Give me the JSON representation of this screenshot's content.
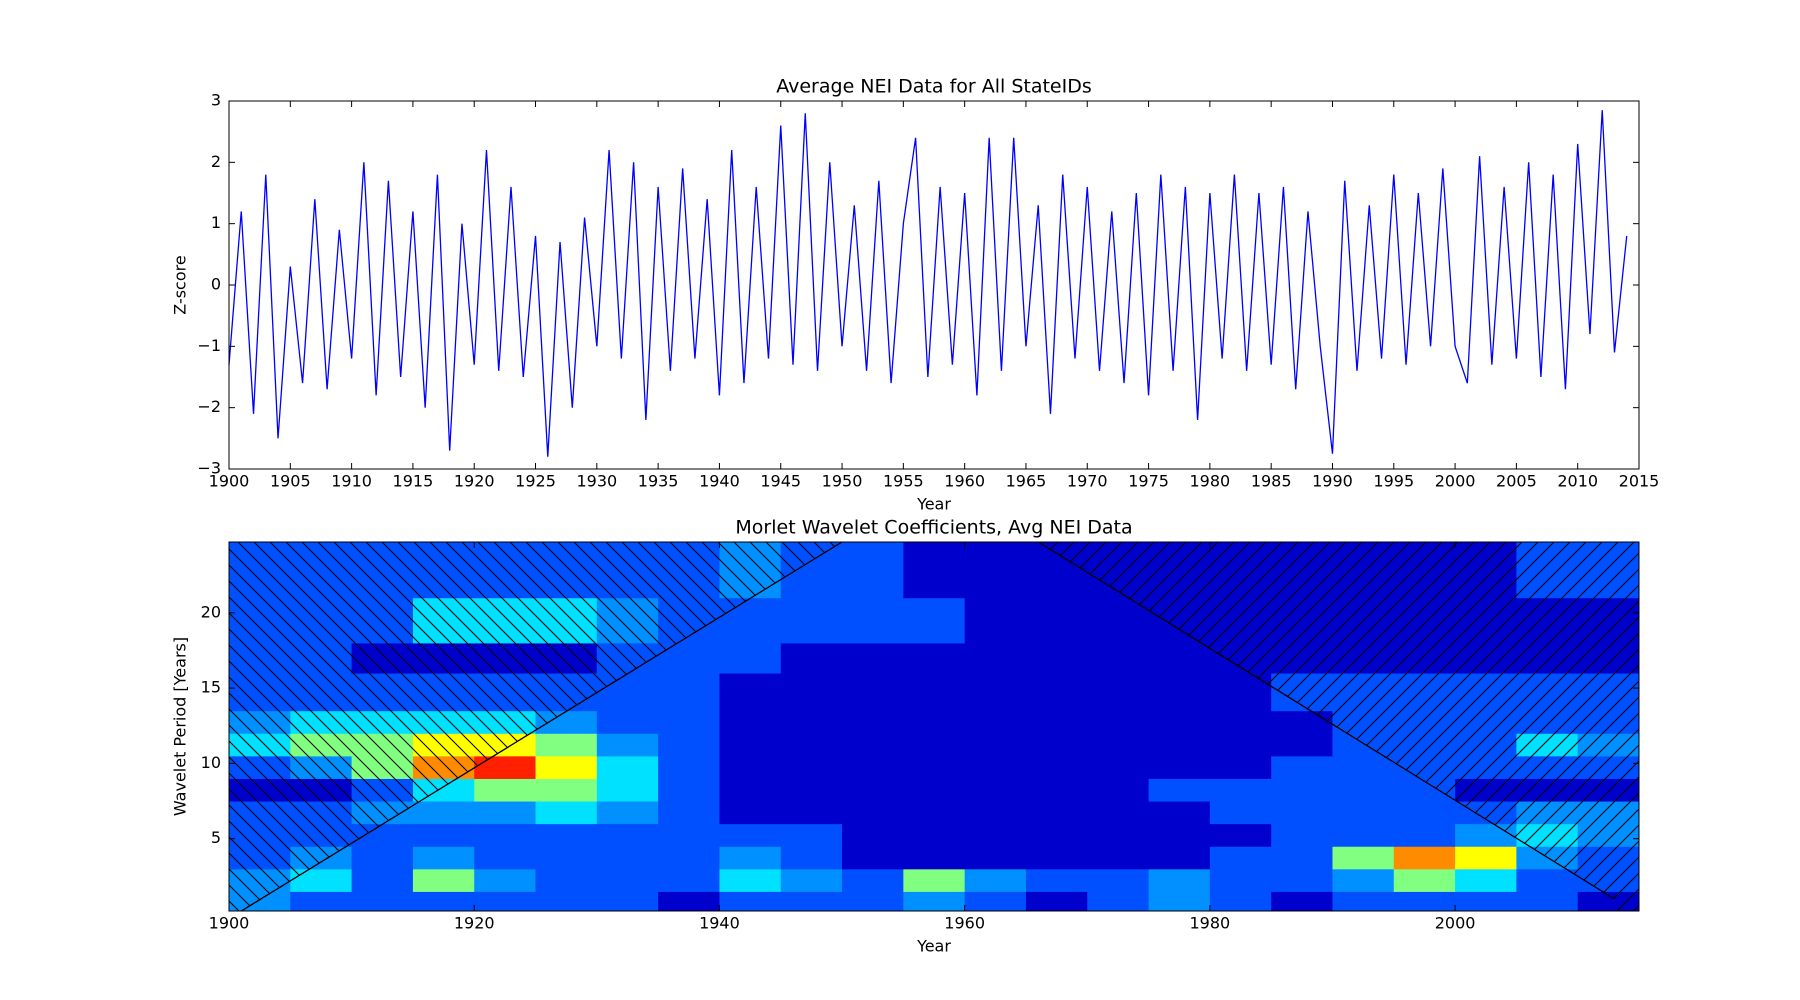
{
  "chart_data": [
    {
      "type": "line",
      "title": "Average NEI Data for All StateIDs",
      "x_label": "Year",
      "y_label": "Z-score",
      "xlim": [
        1900,
        2015
      ],
      "ylim": [
        -3,
        3
      ],
      "xticks": [
        1900,
        1905,
        1910,
        1915,
        1920,
        1925,
        1930,
        1935,
        1940,
        1945,
        1950,
        1955,
        1960,
        1965,
        1970,
        1975,
        1980,
        1985,
        1990,
        1995,
        2000,
        2005,
        2010,
        2015
      ],
      "yticks": [
        {
          "value": -3,
          "label": "−3"
        },
        {
          "value": -2,
          "label": "−2"
        },
        {
          "value": -1,
          "label": "−1"
        },
        0,
        1,
        2,
        3
      ],
      "series": [
        {
          "color": "#0000ff",
          "x": [
            1900,
            1901,
            1902,
            1903,
            1904,
            1905,
            1906,
            1907,
            1908,
            1909,
            1910,
            1911,
            1912,
            1913,
            1914,
            1915,
            1916,
            1917,
            1918,
            1919,
            1920,
            1921,
            1922,
            1923,
            1924,
            1925,
            1926,
            1927,
            1928,
            1929,
            1930,
            1931,
            1932,
            1933,
            1934,
            1935,
            1936,
            1937,
            1938,
            1939,
            1940,
            1941,
            1942,
            1943,
            1944,
            1945,
            1946,
            1947,
            1948,
            1949,
            1950,
            1951,
            1952,
            1953,
            1954,
            1955,
            1956,
            1957,
            1958,
            1959,
            1960,
            1961,
            1962,
            1963,
            1964,
            1965,
            1966,
            1967,
            1968,
            1969,
            1970,
            1971,
            1972,
            1973,
            1974,
            1975,
            1976,
            1977,
            1978,
            1979,
            1980,
            1981,
            1982,
            1983,
            1984,
            1985,
            1986,
            1987,
            1988,
            1989,
            1990,
            1991,
            1992,
            1993,
            1994,
            1995,
            1996,
            1997,
            1998,
            1999,
            2000,
            2001,
            2002,
            2003,
            2004,
            2005,
            2006,
            2007,
            2008,
            2009,
            2010,
            2011,
            2012,
            2013,
            2014
          ],
          "values": [
            -1.3,
            1.2,
            -2.1,
            1.8,
            -2.5,
            0.3,
            -1.6,
            1.4,
            -1.7,
            0.9,
            -1.2,
            2.0,
            -1.8,
            1.7,
            -1.5,
            1.2,
            -2.0,
            1.8,
            -2.7,
            1.0,
            -1.3,
            2.2,
            -1.4,
            1.6,
            -1.5,
            0.8,
            -2.8,
            0.7,
            -2.0,
            1.1,
            -1.0,
            2.2,
            -1.2,
            2.0,
            -2.2,
            1.6,
            -1.4,
            1.9,
            -1.2,
            1.4,
            -1.8,
            2.2,
            -1.6,
            1.6,
            -1.2,
            2.6,
            -1.3,
            2.8,
            -1.4,
            2.0,
            -1.0,
            1.3,
            -1.4,
            1.7,
            -1.6,
            1.0,
            2.4,
            -1.5,
            1.6,
            -1.3,
            1.5,
            -1.8,
            2.4,
            -1.4,
            2.4,
            -1.0,
            1.3,
            -2.1,
            1.8,
            -1.2,
            1.6,
            -1.4,
            1.2,
            -1.6,
            1.5,
            -1.8,
            1.8,
            -1.4,
            1.6,
            -2.2,
            1.5,
            -1.2,
            1.8,
            -1.4,
            1.5,
            -1.3,
            1.6,
            -1.7,
            1.2,
            -1.0,
            -2.75,
            1.7,
            -1.4,
            1.3,
            -1.2,
            1.8,
            -1.3,
            1.5,
            -1.0,
            1.9,
            -1.0,
            -1.6,
            2.1,
            -1.3,
            1.6,
            -1.2,
            2.0,
            -1.5,
            1.8,
            -1.7,
            2.3,
            -0.8,
            2.85,
            -1.1,
            0.8
          ]
        }
      ]
    },
    {
      "type": "contour",
      "title": "Morlet Wavelet Coefficients, Avg NEI Data",
      "x_label": "Year",
      "y_label": "Wavelet Period [Years]",
      "xlim": [
        1900,
        2015
      ],
      "ylim": [
        0.2,
        24.7
      ],
      "xticks": [
        1900,
        1920,
        1940,
        1960,
        1980,
        2000
      ],
      "yticks": [
        5,
        10,
        15,
        20
      ],
      "level_colors": [
        "#0000cd",
        "#0050ff",
        "#0090ff",
        "#00e0ff",
        "#80ff80",
        "#ffff00",
        "#ff8c00",
        "#ff2000",
        "#c80000"
      ],
      "xbins": [
        1900,
        1905,
        1910,
        1915,
        1920,
        1925,
        1930,
        1935,
        1940,
        1945,
        1950,
        1955,
        1960,
        1965,
        1970,
        1975,
        1980,
        1985,
        1990,
        1995,
        2000,
        2005,
        2010,
        2015
      ],
      "ybins": [
        0.2,
        1.5,
        3,
        4.5,
        6,
        7.5,
        9,
        10.5,
        12,
        13.5,
        16,
        18,
        21,
        24.7
      ],
      "z": [
        [
          2,
          1,
          1,
          1,
          1,
          1,
          1,
          0,
          1,
          1,
          1,
          2,
          1,
          0,
          1,
          2,
          1,
          0,
          1,
          1,
          1,
          1,
          0
        ],
        [
          2,
          3,
          1,
          4,
          2,
          1,
          1,
          1,
          3,
          2,
          1,
          4,
          2,
          1,
          1,
          2,
          1,
          1,
          2,
          4,
          3,
          1,
          1
        ],
        [
          1,
          2,
          1,
          2,
          1,
          1,
          1,
          1,
          2,
          1,
          0,
          0,
          0,
          0,
          0,
          0,
          1,
          1,
          4,
          6,
          5,
          2,
          1
        ],
        [
          1,
          1,
          1,
          1,
          1,
          1,
          1,
          1,
          1,
          1,
          0,
          0,
          0,
          0,
          0,
          0,
          0,
          1,
          1,
          1,
          2,
          3,
          2
        ],
        [
          1,
          1,
          2,
          2,
          2,
          3,
          2,
          1,
          0,
          0,
          0,
          0,
          0,
          0,
          0,
          0,
          1,
          1,
          1,
          1,
          1,
          2,
          2
        ],
        [
          0,
          0,
          1,
          3,
          4,
          4,
          3,
          1,
          0,
          0,
          0,
          0,
          0,
          0,
          0,
          1,
          1,
          1,
          1,
          1,
          0,
          0,
          0
        ],
        [
          1,
          2,
          4,
          6,
          7,
          5,
          3,
          1,
          0,
          0,
          0,
          0,
          0,
          0,
          0,
          0,
          0,
          1,
          1,
          1,
          1,
          1,
          1
        ],
        [
          3,
          4,
          4,
          5,
          5,
          4,
          2,
          1,
          0,
          0,
          0,
          0,
          0,
          0,
          0,
          0,
          0,
          0,
          1,
          1,
          1,
          3,
          2
        ],
        [
          2,
          3,
          3,
          3,
          3,
          2,
          1,
          1,
          0,
          0,
          0,
          0,
          0,
          0,
          0,
          0,
          0,
          0,
          1,
          1,
          1,
          1,
          1
        ],
        [
          1,
          1,
          1,
          1,
          1,
          1,
          1,
          1,
          0,
          0,
          0,
          0,
          0,
          0,
          0,
          0,
          0,
          1,
          1,
          1,
          1,
          1,
          1
        ],
        [
          1,
          1,
          0,
          0,
          0,
          0,
          1,
          1,
          1,
          0,
          0,
          0,
          0,
          0,
          0,
          0,
          0,
          0,
          0,
          0,
          0,
          0,
          0
        ],
        [
          1,
          1,
          1,
          3,
          3,
          3,
          2,
          1,
          1,
          1,
          1,
          1,
          0,
          0,
          0,
          0,
          0,
          0,
          0,
          0,
          0,
          0,
          0
        ],
        [
          1,
          1,
          1,
          1,
          1,
          1,
          1,
          1,
          2,
          1,
          1,
          0,
          0,
          0,
          0,
          0,
          0,
          0,
          0,
          0,
          0,
          1,
          1
        ]
      ],
      "coi_left": {
        "x": [
          1901,
          1950
        ],
        "y": [
          0.2,
          24.7
        ]
      },
      "coi_right": {
        "x": [
          1966,
          2013
        ],
        "y": [
          24.7,
          1
        ]
      }
    }
  ]
}
